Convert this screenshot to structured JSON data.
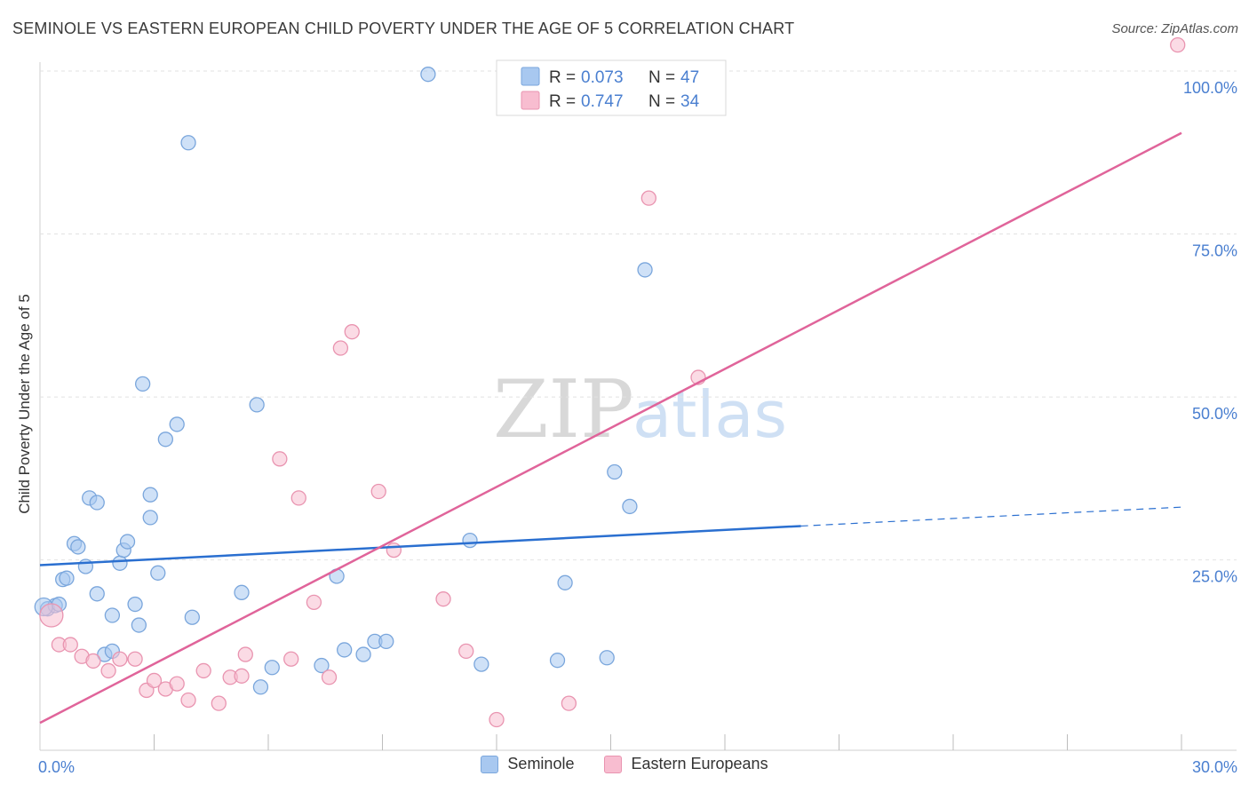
{
  "header": {
    "title": "SEMINOLE VS EASTERN EUROPEAN CHILD POVERTY UNDER THE AGE OF 5 CORRELATION CHART",
    "source": "Source: ZipAtlas.com"
  },
  "watermark": {
    "zip": "ZIP",
    "atlas": "atlas"
  },
  "colors": {
    "seminole_fill": "#a8c8f0",
    "seminole_stroke": "#7aa6dc",
    "seminole_line": "#2a6fd0",
    "eastern_fill": "#f8bdd0",
    "eastern_stroke": "#e994b0",
    "eastern_line": "#e0649a",
    "tick_label": "#4a7fd0"
  },
  "legend_top": [
    {
      "r_label": "R =",
      "r_value": "0.073",
      "n_label": "N =",
      "n_value": "47"
    },
    {
      "r_label": "R =",
      "r_value": "0.747",
      "n_label": "N =",
      "n_value": "34"
    }
  ],
  "legend_bottom": [
    {
      "label": "Seminole"
    },
    {
      "label": "Eastern Europeans"
    }
  ],
  "chart_data": {
    "type": "scatter",
    "title": "SEMINOLE VS EASTERN EUROPEAN CHILD POVERTY UNDER THE AGE OF 5 CORRELATION CHART",
    "xlabel": "",
    "ylabel": "Child Poverty Under the Age of 5",
    "xlim": [
      0,
      30
    ],
    "ylim": [
      0,
      100
    ],
    "x_tick_labels": [
      "0.0%",
      "30.0%"
    ],
    "y_tick_labels": [
      "25.0%",
      "50.0%",
      "75.0%",
      "100.0%"
    ],
    "y_ticks": [
      25,
      50,
      75,
      100
    ],
    "grid": true,
    "legend_position": "top-center",
    "series": [
      {
        "name": "Seminole",
        "r": 0.073,
        "n": 47,
        "trend": {
          "x0": 0,
          "y0": 24.2,
          "x1": 20.0,
          "y1": 30.2,
          "dashed_to_x": 30,
          "dashed_to_y": 33.1
        },
        "points": [
          [
            0.2,
            17.5
          ],
          [
            0.4,
            18.0
          ],
          [
            0.5,
            18.2
          ],
          [
            0.6,
            22.0
          ],
          [
            0.7,
            22.2
          ],
          [
            0.9,
            27.5
          ],
          [
            1.0,
            27.0
          ],
          [
            1.2,
            24.0
          ],
          [
            1.3,
            34.5
          ],
          [
            1.5,
            33.8
          ],
          [
            1.5,
            19.8
          ],
          [
            1.7,
            10.5
          ],
          [
            1.9,
            16.5
          ],
          [
            1.9,
            11.0
          ],
          [
            2.1,
            24.5
          ],
          [
            2.2,
            26.5
          ],
          [
            2.3,
            27.8
          ],
          [
            2.5,
            18.2
          ],
          [
            2.6,
            15.0
          ],
          [
            2.7,
            52.0
          ],
          [
            2.9,
            31.5
          ],
          [
            2.9,
            35.0
          ],
          [
            3.1,
            23.0
          ],
          [
            3.3,
            43.5
          ],
          [
            3.6,
            45.8
          ],
          [
            4.0,
            16.2
          ],
          [
            3.9,
            89.0
          ],
          [
            5.3,
            20.0
          ],
          [
            5.7,
            48.8
          ],
          [
            5.8,
            5.5
          ],
          [
            6.1,
            8.5
          ],
          [
            7.4,
            8.8
          ],
          [
            7.8,
            22.5
          ],
          [
            8.0,
            11.2
          ],
          [
            8.5,
            10.5
          ],
          [
            8.8,
            12.5
          ],
          [
            9.1,
            12.5
          ],
          [
            10.2,
            99.5
          ],
          [
            11.3,
            28.0
          ],
          [
            11.6,
            9.0
          ],
          [
            13.6,
            9.6
          ],
          [
            13.8,
            21.5
          ],
          [
            14.9,
            10.0
          ],
          [
            15.1,
            38.5
          ],
          [
            15.5,
            33.2
          ],
          [
            15.9,
            69.5
          ],
          [
            0.1,
            17.8
          ]
        ]
      },
      {
        "name": "Eastern Europeans",
        "r": 0.747,
        "n": 34,
        "trend": {
          "x0": 0,
          "y0": 0.0,
          "x1": 30,
          "y1": 90.5
        },
        "points": [
          [
            0.3,
            16.5
          ],
          [
            0.5,
            12.0
          ],
          [
            0.8,
            12.0
          ],
          [
            1.1,
            10.2
          ],
          [
            1.4,
            9.5
          ],
          [
            1.8,
            8.0
          ],
          [
            2.1,
            9.8
          ],
          [
            2.5,
            9.8
          ],
          [
            2.8,
            5.0
          ],
          [
            3.0,
            6.5
          ],
          [
            3.3,
            5.2
          ],
          [
            3.6,
            6.0
          ],
          [
            3.9,
            3.5
          ],
          [
            4.3,
            8.0
          ],
          [
            4.7,
            3.0
          ],
          [
            5.0,
            7.0
          ],
          [
            5.4,
            10.5
          ],
          [
            5.3,
            7.2
          ],
          [
            6.3,
            40.5
          ],
          [
            6.6,
            9.8
          ],
          [
            6.8,
            34.5
          ],
          [
            7.2,
            18.5
          ],
          [
            7.6,
            7.0
          ],
          [
            7.9,
            57.5
          ],
          [
            8.2,
            60.0
          ],
          [
            8.9,
            35.5
          ],
          [
            9.3,
            26.5
          ],
          [
            10.6,
            19.0
          ],
          [
            11.2,
            11.0
          ],
          [
            13.9,
            3.0
          ],
          [
            16.0,
            80.5
          ],
          [
            17.3,
            53.0
          ],
          [
            29.9,
            104.0
          ],
          [
            12.0,
            0.5
          ]
        ]
      }
    ]
  }
}
